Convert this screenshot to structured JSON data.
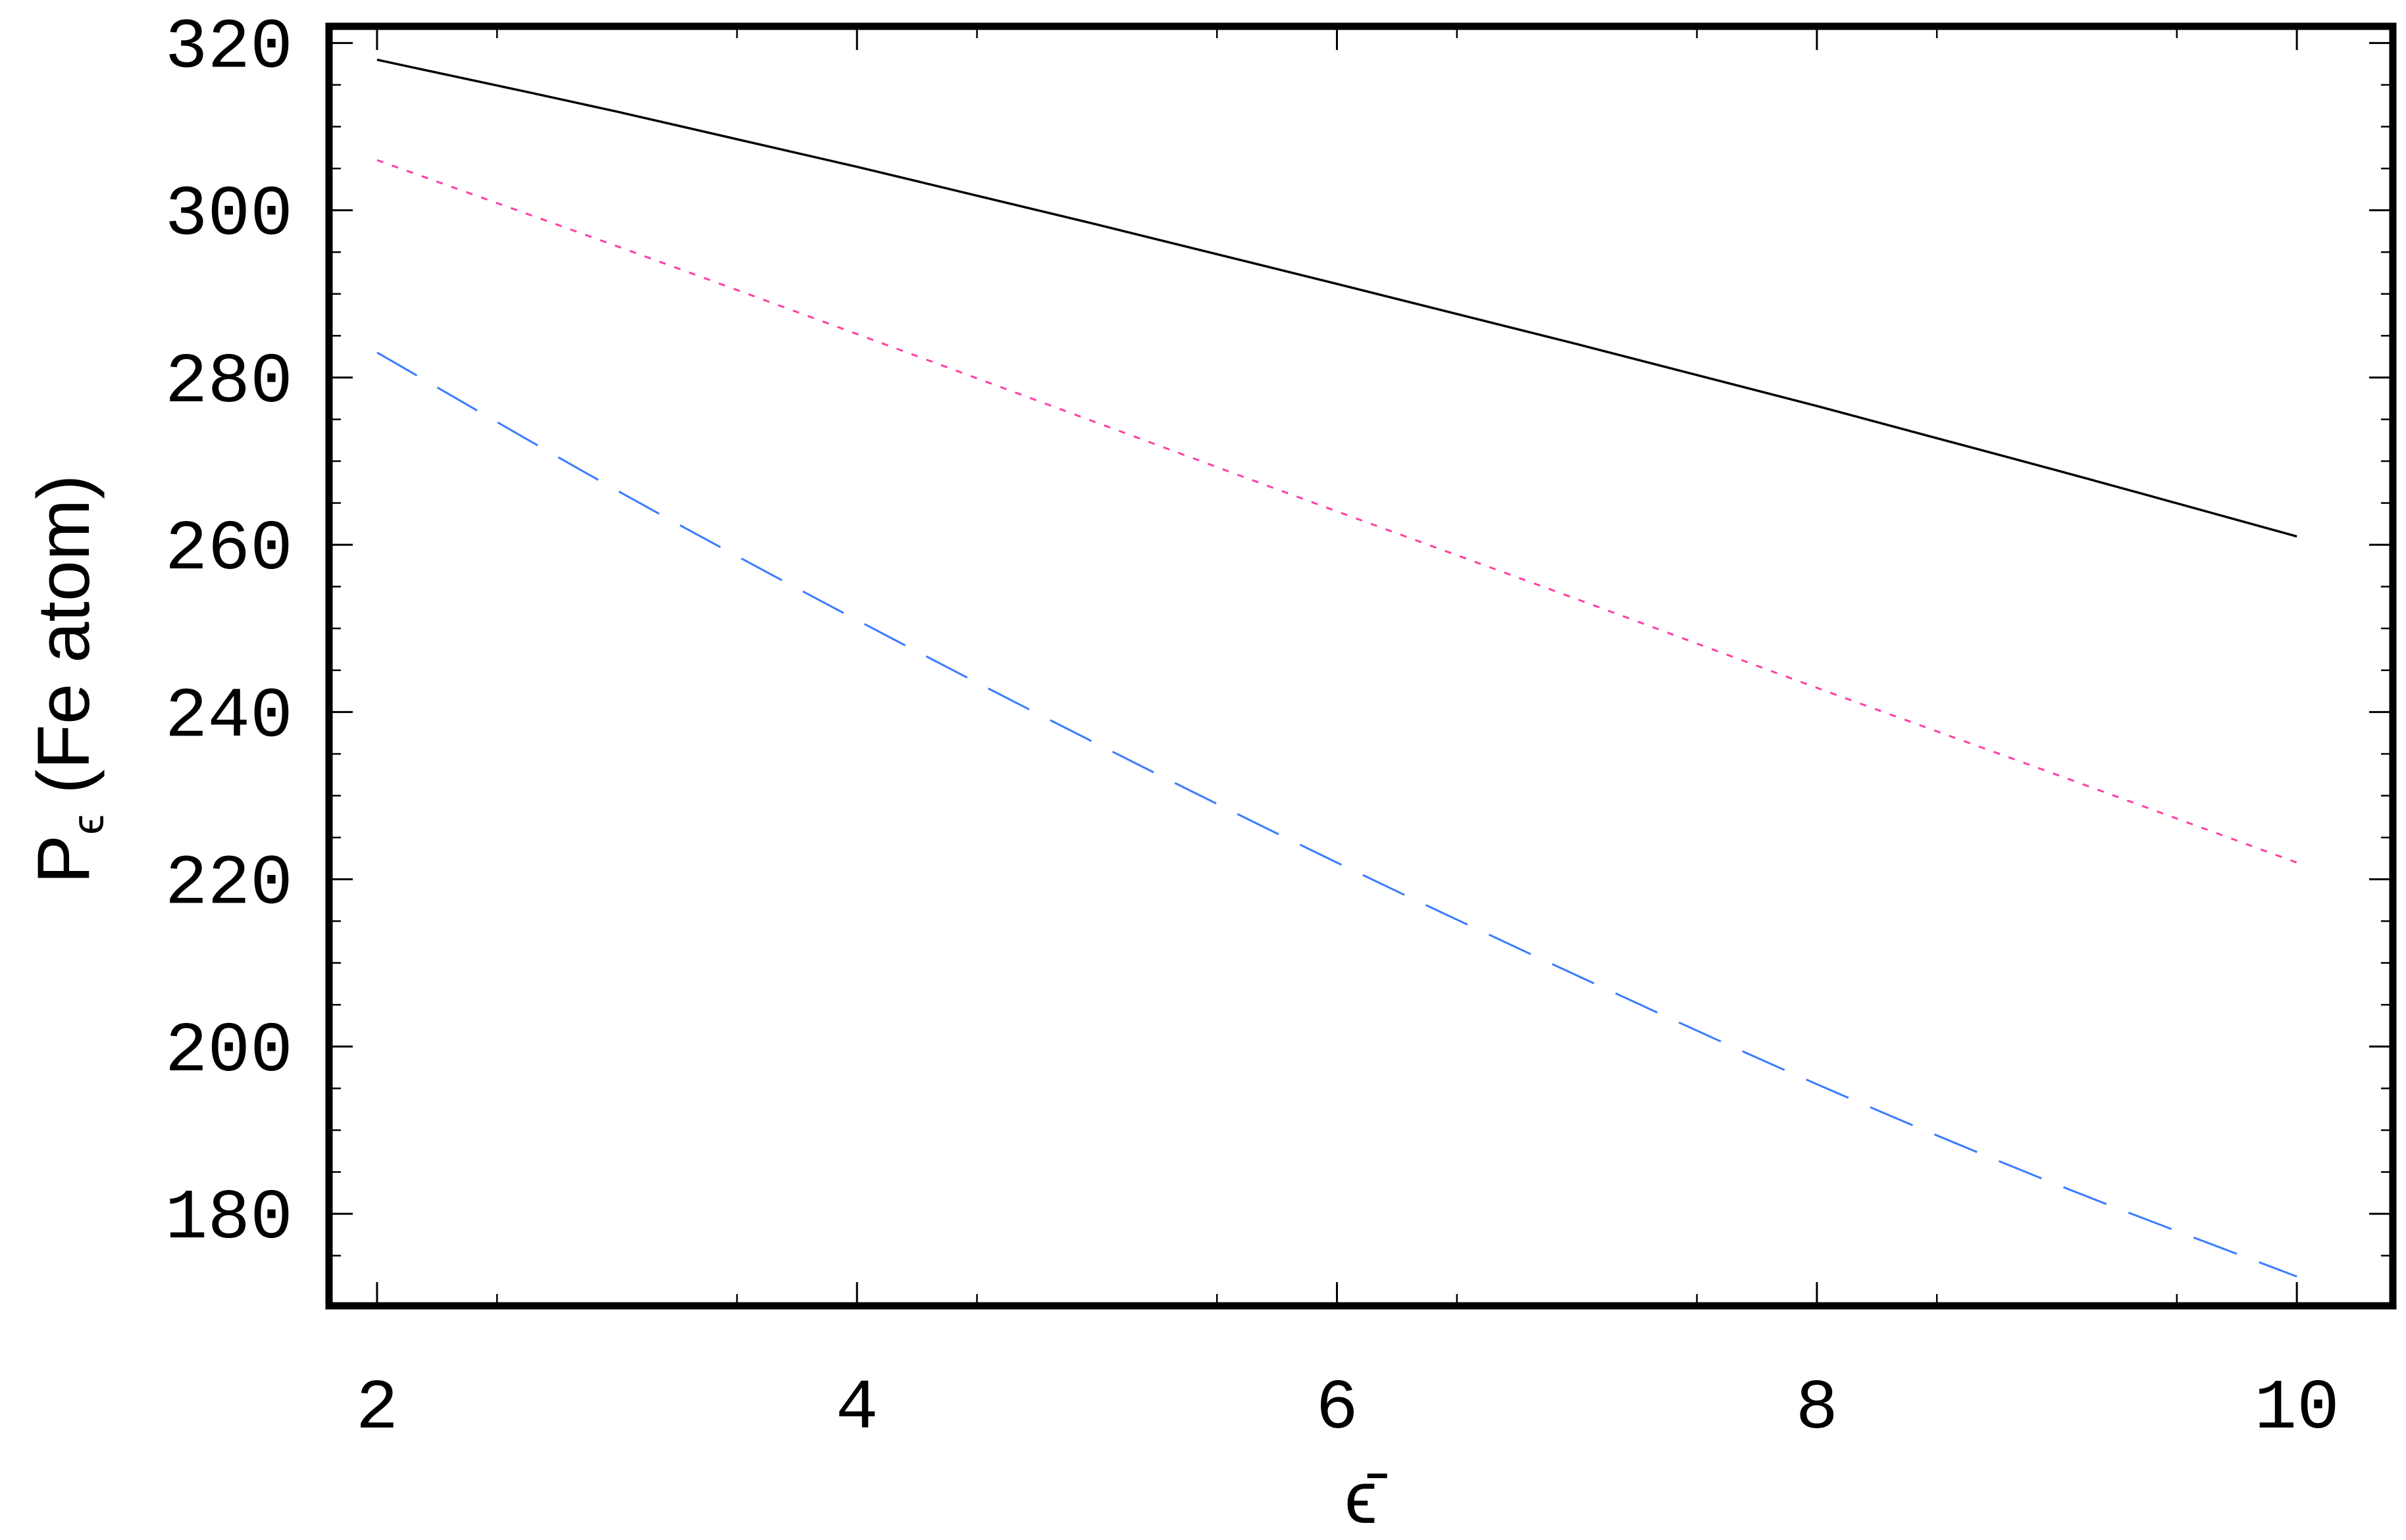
{
  "chart_data": {
    "type": "line",
    "xlabel": "ϵ̄",
    "ylabel": "P̄ϵ (Fe atom)",
    "ylabel_parts": {
      "symbol": "P",
      "subscript": "ϵ",
      "rest": " (Fe atom)"
    },
    "xlim": [
      1.8,
      10.4
    ],
    "ylim": [
      169,
      322
    ],
    "xticks": [
      2,
      4,
      6,
      8,
      10
    ],
    "yticks": [
      180,
      200,
      220,
      240,
      260,
      280,
      300,
      320
    ],
    "grid": false,
    "legend": "none",
    "x": [
      2,
      3,
      4,
      5,
      6,
      7,
      8,
      9,
      10
    ],
    "series": [
      {
        "style": "solid",
        "color": "#000000",
        "values": [
          318,
          311.8,
          305.2,
          298.3,
          291.2,
          284,
          276.6,
          268.9,
          261
        ]
      },
      {
        "style": "dotted",
        "color": "#ff3fa0",
        "values": [
          306,
          295.7,
          285.2,
          274.6,
          264,
          253.5,
          242.9,
          232.5,
          222
        ]
      },
      {
        "style": "dashed",
        "color": "#3a7cff",
        "values": [
          283,
          266.5,
          251,
          236.2,
          222,
          208.5,
          195.5,
          183.5,
          172.5
        ]
      }
    ]
  }
}
